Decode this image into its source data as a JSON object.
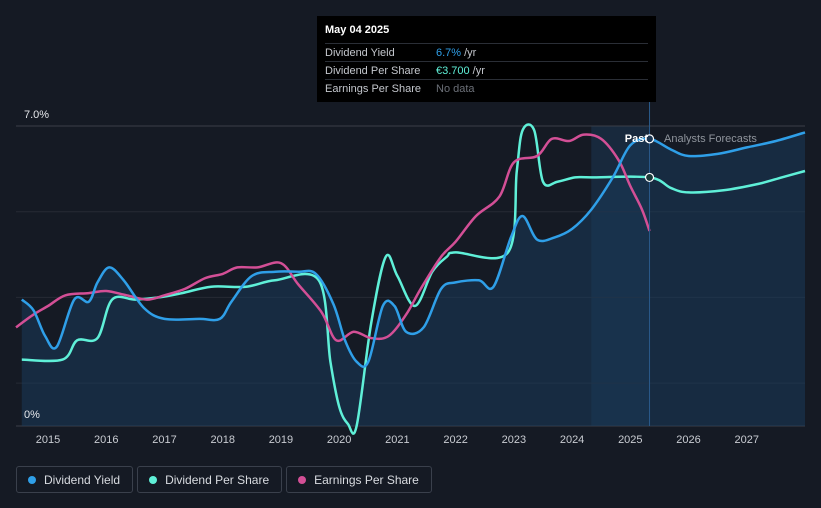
{
  "tooltip": {
    "date": "May 04 2025",
    "rows": [
      {
        "label": "Dividend Yield",
        "value": "6.7%",
        "unit": "/yr",
        "color": "#2f9fe8"
      },
      {
        "label": "Dividend Per Share",
        "value": "€3.700",
        "unit": "/yr",
        "color": "#5ff0d8"
      },
      {
        "label": "Earnings Per Share",
        "value": "No data",
        "unit": "",
        "color": "#6c7078"
      }
    ]
  },
  "annotations": {
    "past": "Past",
    "forecast": "Analysts Forecasts"
  },
  "legend": [
    {
      "label": "Dividend Yield",
      "color": "#2f9fe8"
    },
    {
      "label": "Dividend Per Share",
      "color": "#5ff0d8"
    },
    {
      "label": "Earnings Per Share",
      "color": "#d34f96"
    }
  ],
  "chart_data": {
    "type": "line",
    "ylim": [
      0,
      7.0
    ],
    "y_tick_labels": [
      "7.0%",
      "0%"
    ],
    "xlim": [
      2014.45,
      2028.0
    ],
    "x_ticks": [
      2015,
      2016,
      2017,
      2018,
      2019,
      2020,
      2021,
      2022,
      2023,
      2024,
      2025,
      2026,
      2027
    ],
    "forecast_region": [
      2024.33,
      2025.33
    ],
    "marker_x": 2025.33,
    "series": [
      {
        "name": "Dividend Yield",
        "color": "#2f9fe8",
        "points": [
          [
            2014.55,
            2.95
          ],
          [
            2014.75,
            2.7
          ],
          [
            2014.95,
            2.1
          ],
          [
            2015.15,
            1.85
          ],
          [
            2015.45,
            2.95
          ],
          [
            2015.7,
            2.9
          ],
          [
            2015.85,
            3.35
          ],
          [
            2016.05,
            3.7
          ],
          [
            2016.3,
            3.4
          ],
          [
            2016.65,
            2.75
          ],
          [
            2017.0,
            2.5
          ],
          [
            2017.6,
            2.5
          ],
          [
            2017.95,
            2.5
          ],
          [
            2018.15,
            2.9
          ],
          [
            2018.5,
            3.5
          ],
          [
            2018.9,
            3.6
          ],
          [
            2019.3,
            3.6
          ],
          [
            2019.6,
            3.55
          ],
          [
            2019.9,
            2.85
          ],
          [
            2020.1,
            2.0
          ],
          [
            2020.3,
            1.5
          ],
          [
            2020.5,
            1.5
          ],
          [
            2020.75,
            2.8
          ],
          [
            2020.95,
            2.8
          ],
          [
            2021.15,
            2.2
          ],
          [
            2021.45,
            2.3
          ],
          [
            2021.75,
            3.2
          ],
          [
            2022.0,
            3.35
          ],
          [
            2022.4,
            3.4
          ],
          [
            2022.65,
            3.25
          ],
          [
            2022.95,
            4.4
          ],
          [
            2023.15,
            4.9
          ],
          [
            2023.4,
            4.35
          ],
          [
            2023.7,
            4.4
          ],
          [
            2024.0,
            4.6
          ],
          [
            2024.33,
            5.05
          ],
          [
            2024.7,
            5.8
          ],
          [
            2025.0,
            6.55
          ],
          [
            2025.33,
            6.7
          ],
          [
            2025.7,
            6.45
          ],
          [
            2026.0,
            6.3
          ],
          [
            2026.5,
            6.35
          ],
          [
            2027.0,
            6.5
          ],
          [
            2027.5,
            6.65
          ],
          [
            2028.0,
            6.85
          ]
        ]
      },
      {
        "name": "Dividend Per Share",
        "color": "#5ff0d8",
        "points": [
          [
            2014.55,
            1.55
          ],
          [
            2015.25,
            1.55
          ],
          [
            2015.5,
            2.0
          ],
          [
            2015.85,
            2.05
          ],
          [
            2016.1,
            2.95
          ],
          [
            2016.5,
            2.95
          ],
          [
            2016.9,
            3.0
          ],
          [
            2017.3,
            3.1
          ],
          [
            2017.8,
            3.25
          ],
          [
            2018.4,
            3.25
          ],
          [
            2018.9,
            3.4
          ],
          [
            2019.65,
            3.4
          ],
          [
            2019.85,
            1.5
          ],
          [
            2020.0,
            0.45
          ],
          [
            2020.15,
            0.05
          ],
          [
            2020.3,
            0.0
          ],
          [
            2020.55,
            2.4
          ],
          [
            2020.8,
            3.95
          ],
          [
            2021.0,
            3.5
          ],
          [
            2021.3,
            2.8
          ],
          [
            2021.6,
            3.6
          ],
          [
            2021.85,
            3.95
          ],
          [
            2022.0,
            4.05
          ],
          [
            2022.9,
            4.05
          ],
          [
            2023.05,
            5.95
          ],
          [
            2023.15,
            6.9
          ],
          [
            2023.35,
            6.9
          ],
          [
            2023.5,
            5.7
          ],
          [
            2023.75,
            5.7
          ],
          [
            2024.05,
            5.8
          ],
          [
            2024.33,
            5.8
          ],
          [
            2025.33,
            5.8
          ],
          [
            2025.7,
            5.55
          ],
          [
            2026.0,
            5.45
          ],
          [
            2026.6,
            5.5
          ],
          [
            2027.2,
            5.65
          ],
          [
            2027.6,
            5.8
          ],
          [
            2028.0,
            5.95
          ]
        ]
      },
      {
        "name": "Earnings Per Share",
        "color": "#d34f96",
        "points": [
          [
            2014.45,
            2.3
          ],
          [
            2014.75,
            2.6
          ],
          [
            2015.0,
            2.8
          ],
          [
            2015.3,
            3.05
          ],
          [
            2015.7,
            3.1
          ],
          [
            2016.0,
            3.15
          ],
          [
            2016.35,
            3.05
          ],
          [
            2016.7,
            2.95
          ],
          [
            2017.0,
            3.05
          ],
          [
            2017.35,
            3.2
          ],
          [
            2017.7,
            3.45
          ],
          [
            2018.0,
            3.55
          ],
          [
            2018.25,
            3.7
          ],
          [
            2018.6,
            3.7
          ],
          [
            2019.0,
            3.8
          ],
          [
            2019.3,
            3.3
          ],
          [
            2019.7,
            2.65
          ],
          [
            2019.95,
            2.0
          ],
          [
            2020.25,
            2.2
          ],
          [
            2020.55,
            2.05
          ],
          [
            2020.85,
            2.1
          ],
          [
            2021.15,
            2.6
          ],
          [
            2021.4,
            3.2
          ],
          [
            2021.75,
            3.95
          ],
          [
            2022.0,
            4.3
          ],
          [
            2022.35,
            4.9
          ],
          [
            2022.75,
            5.35
          ],
          [
            2023.0,
            6.15
          ],
          [
            2023.4,
            6.3
          ],
          [
            2023.65,
            6.7
          ],
          [
            2023.95,
            6.65
          ],
          [
            2024.2,
            6.8
          ],
          [
            2024.5,
            6.7
          ],
          [
            2024.8,
            6.2
          ],
          [
            2025.0,
            5.6
          ],
          [
            2025.2,
            5.05
          ],
          [
            2025.33,
            4.55
          ]
        ]
      }
    ]
  }
}
